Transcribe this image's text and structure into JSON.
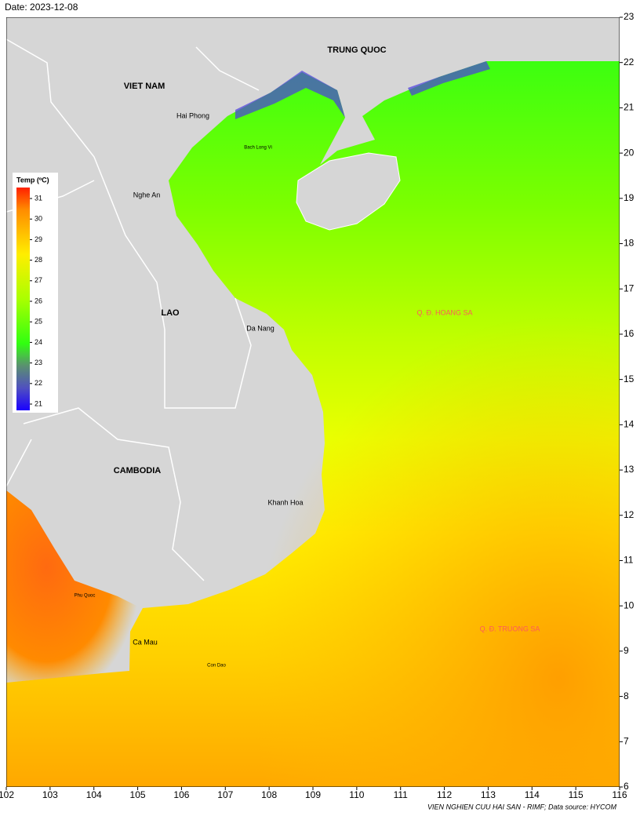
{
  "header": {
    "date": "Date: 2023-12-08"
  },
  "map": {
    "xlim": [
      102,
      116
    ],
    "ylim": [
      6,
      23
    ],
    "xticks": [
      102,
      103,
      104,
      105,
      106,
      107,
      108,
      109,
      110,
      111,
      112,
      113,
      114,
      115,
      116
    ],
    "yticks": [
      6,
      7,
      8,
      9,
      10,
      11,
      12,
      13,
      14,
      15,
      16,
      17,
      18,
      19,
      20,
      21,
      22,
      23
    ],
    "countries": [
      "TRUNG QUOC",
      "VIET NAM",
      "LAO",
      "CAMBODIA"
    ],
    "places": [
      "Hai Phong",
      "Bach Long Vi",
      "Nghe An",
      "Da Nang",
      "Khanh Hoa",
      "Phu Quoc",
      "Ca Mau",
      "Con Dao"
    ],
    "islands": [
      "Q. Đ. HOANG SA",
      "Q. Đ. TRUONG SA"
    ]
  },
  "legend": {
    "title": "Temp (ºC)",
    "ticks": [
      21,
      22,
      23,
      24,
      25,
      26,
      27,
      28,
      29,
      30,
      31
    ]
  },
  "credit": "VIEN NGHIEN CUU HAI SAN - RIMF; Data source: HYCOM"
}
